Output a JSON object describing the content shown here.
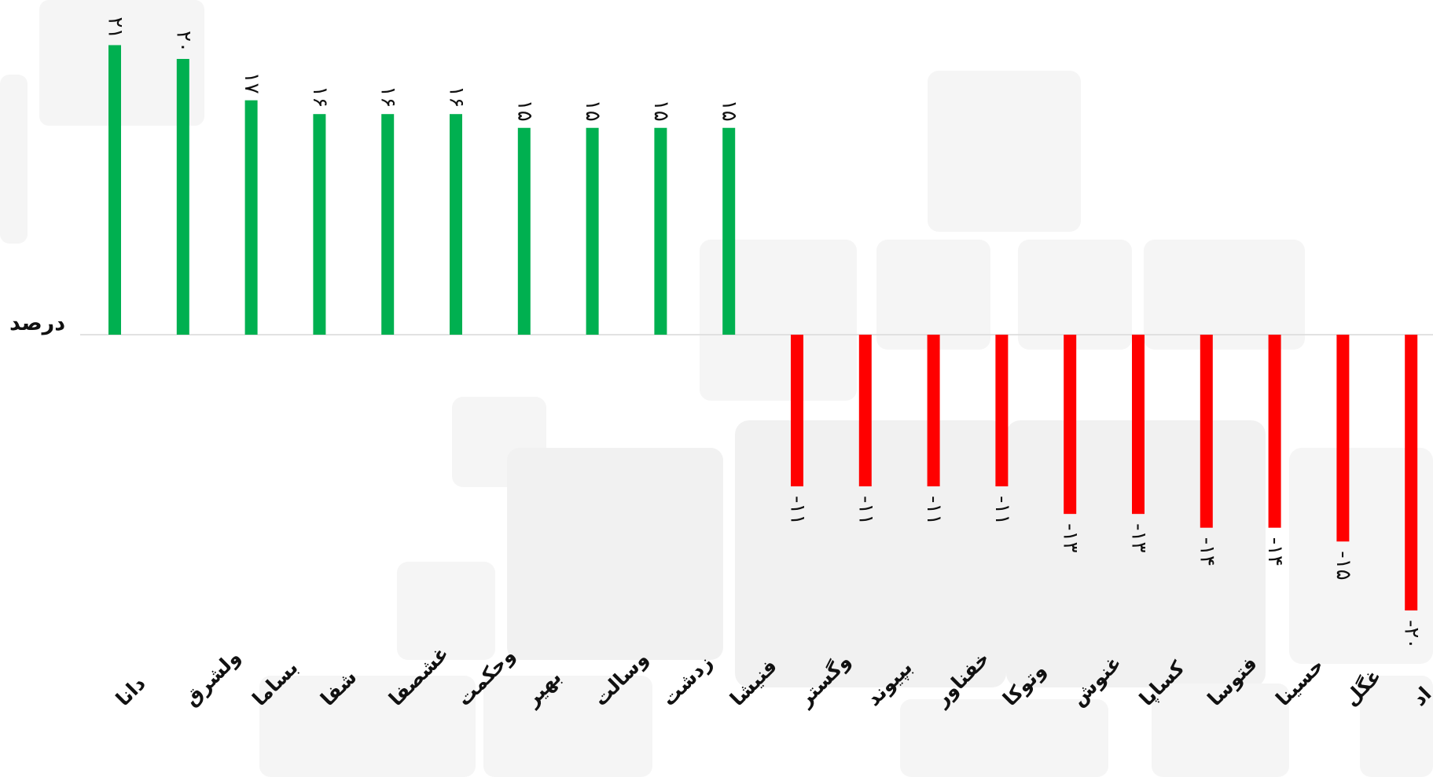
{
  "chart_data": {
    "type": "bar",
    "ylabel": "درصد",
    "categories": [
      "دانا",
      "ولشرق",
      "بساما",
      "شفا",
      "غشصفا",
      "وحکمت",
      "بهیر",
      "وسالت",
      "زدشت",
      "فنیشا",
      "وگستر",
      "بپیوند",
      "خفناور",
      "وتوکا",
      "غنوش",
      "کساپا",
      "فتوسا",
      "حسینا",
      "غگل",
      "فمراد"
    ],
    "values": [
      21,
      20,
      17,
      16,
      16,
      16,
      15,
      15,
      15,
      15,
      -11,
      -11,
      -11,
      -11,
      -13,
      -13,
      -14,
      -14,
      -15,
      -20
    ],
    "value_labels": [
      "۲۱",
      "۲۰",
      "۱۷",
      "۱۶",
      "۱۶",
      "۱۶",
      "۱۵",
      "۱۵",
      "۱۵",
      "۱۵",
      "-۱۱",
      "-۱۱",
      "-۱۱",
      "-۱۱",
      "-۱۳",
      "-۱۳",
      "-۱۴",
      "-۱۴",
      "-۱۵",
      "-۲۰"
    ],
    "ylim": [
      -25,
      25
    ],
    "grid": false,
    "colors": {
      "positive": "#00b050",
      "negative": "#ff0000",
      "baseline": "#d9d9d9"
    }
  }
}
